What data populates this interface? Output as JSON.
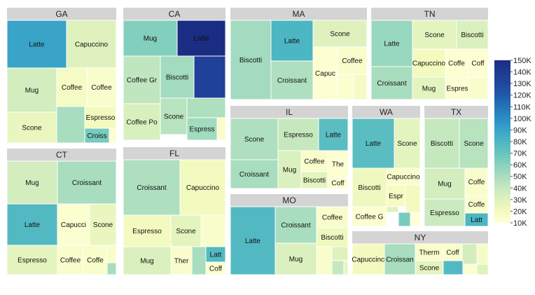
{
  "chart_data": {
    "type": "treemap",
    "title": "",
    "color_scale": {
      "min": 10000,
      "max": 150000,
      "stops": [
        {
          "value": 10000,
          "color": "#ffffd6"
        },
        {
          "value": 20000,
          "color": "#f3fabf"
        },
        {
          "value": 30000,
          "color": "#dff2be"
        },
        {
          "value": 40000,
          "color": "#c6e8bf"
        },
        {
          "value": 50000,
          "color": "#a8ddbf"
        },
        {
          "value": 60000,
          "color": "#88d2bd"
        },
        {
          "value": 70000,
          "color": "#68c4be"
        },
        {
          "value": 80000,
          "color": "#4cb6c3"
        },
        {
          "value": 90000,
          "color": "#39a3c8"
        },
        {
          "value": 100000,
          "color": "#2b8dc4"
        },
        {
          "value": 110000,
          "color": "#2574b8"
        },
        {
          "value": 120000,
          "color": "#2159aa"
        },
        {
          "value": 130000,
          "color": "#1f479d"
        },
        {
          "value": 140000,
          "color": "#1f3a92"
        },
        {
          "value": 150000,
          "color": "#1b2c83"
        }
      ],
      "ticks": [
        "150K",
        "140K",
        "130K",
        "120K",
        "110K",
        "100K",
        "90K",
        "80K",
        "70K",
        "60K",
        "50K",
        "40K",
        "30K",
        "20K",
        "10K"
      ]
    },
    "groups": [
      {
        "name": "GA",
        "cells": [
          {
            "label": "Latte",
            "value": 90000
          },
          {
            "label": "Capuccino",
            "value": 30000
          },
          {
            "label": "Mug",
            "value": 35000
          },
          {
            "label": "Coffee",
            "value": 18000
          },
          {
            "label": "Coffee",
            "value": 15000
          },
          {
            "label": "Scone",
            "value": 25000
          },
          {
            "label": "",
            "value": 50000
          },
          {
            "label": "Espresso",
            "value": 20000
          },
          {
            "label": "Croiss",
            "value": 65000
          },
          {
            "label": "",
            "value": 12000
          }
        ]
      },
      {
        "name": "CA",
        "cells": [
          {
            "label": "Mug",
            "value": 62000
          },
          {
            "label": "Latte",
            "value": 150000
          },
          {
            "label": "Coffee Gr",
            "value": 42000
          },
          {
            "label": "Biscotti",
            "value": 52000
          },
          {
            "label": "",
            "value": 135000
          },
          {
            "label": "Coffee Po",
            "value": 33000
          },
          {
            "label": "Scone",
            "value": 45000
          },
          {
            "label": "",
            "value": 48000
          },
          {
            "label": "Espress",
            "value": 52000
          },
          {
            "label": "",
            "value": 15000
          }
        ]
      },
      {
        "name": "MA",
        "cells": [
          {
            "label": "Biscotti",
            "value": 52000
          },
          {
            "label": "Latte",
            "value": 80000
          },
          {
            "label": "Scone",
            "value": 30000
          },
          {
            "label": "Croissant",
            "value": 48000
          },
          {
            "label": "Coffee",
            "value": 15000
          },
          {
            "label": "Capuc",
            "value": 12000
          },
          {
            "label": "",
            "value": 13000
          },
          {
            "label": "",
            "value": 18000
          },
          {
            "label": "",
            "value": 15000
          }
        ]
      },
      {
        "name": "TN",
        "cells": [
          {
            "label": "Latte",
            "value": 55000
          },
          {
            "label": "Scone",
            "value": 28000
          },
          {
            "label": "Biscotti",
            "value": 32000
          },
          {
            "label": "Capuccino",
            "value": 20000
          },
          {
            "label": "Coffe",
            "value": 12000
          },
          {
            "label": "Coff",
            "value": 12000
          },
          {
            "label": "Croissant",
            "value": 50000
          },
          {
            "label": "Mug",
            "value": 28000
          },
          {
            "label": "Espres",
            "value": 12000
          },
          {
            "label": "",
            "value": 15000
          }
        ]
      },
      {
        "name": "IL",
        "cells": [
          {
            "label": "Scone",
            "value": 48000
          },
          {
            "label": "Espresso",
            "value": 40000
          },
          {
            "label": "Latte",
            "value": 75000
          },
          {
            "label": "Croissant",
            "value": 50000
          },
          {
            "label": "Mug",
            "value": 32000
          },
          {
            "label": "Coffee",
            "value": 15000
          },
          {
            "label": "The",
            "value": 12000
          },
          {
            "label": "Biscotti",
            "value": 28000
          },
          {
            "label": "Coff",
            "value": 13000
          },
          {
            "label": "",
            "value": 10000
          },
          {
            "label": "",
            "value": 10000
          },
          {
            "label": "",
            "value": 10000
          }
        ]
      },
      {
        "name": "WA",
        "cells": [
          {
            "label": "Latte",
            "value": 75000
          },
          {
            "label": "Scone",
            "value": 28000
          },
          {
            "label": "Biscotti",
            "value": 22000
          },
          {
            "label": "Capuccino",
            "value": 15000
          },
          {
            "label": "Espr",
            "value": 18000
          },
          {
            "label": "",
            "value": 20000
          },
          {
            "label": "",
            "value": 30000
          },
          {
            "label": "Coffee G",
            "value": 12000
          },
          {
            "label": "",
            "value": 65000
          },
          {
            "label": "",
            "value": 10000
          }
        ]
      },
      {
        "name": "TX",
        "cells": [
          {
            "label": "Biscotti",
            "value": 40000
          },
          {
            "label": "Scone",
            "value": 45000
          },
          {
            "label": "Mug",
            "value": 35000
          },
          {
            "label": "Coffe",
            "value": 15000
          },
          {
            "label": "Coffe",
            "value": 15000
          },
          {
            "label": "Espresso",
            "value": 38000
          },
          {
            "label": "Latt",
            "value": 80000
          }
        ]
      },
      {
        "name": "CT",
        "cells": [
          {
            "label": "Mug",
            "value": 35000
          },
          {
            "label": "Croissant",
            "value": 50000
          },
          {
            "label": "Latte",
            "value": 78000
          },
          {
            "label": "Capucci",
            "value": 13000
          },
          {
            "label": "Scone",
            "value": 25000
          },
          {
            "label": "Espresso",
            "value": 28000
          },
          {
            "label": "Coffee",
            "value": 15000
          },
          {
            "label": "Coffe",
            "value": 15000
          },
          {
            "label": "",
            "value": 15000
          },
          {
            "label": "",
            "value": 50000
          }
        ]
      },
      {
        "name": "FL",
        "cells": [
          {
            "label": "Croissant",
            "value": 48000
          },
          {
            "label": "Capuccino",
            "value": 20000
          },
          {
            "label": "Espresso",
            "value": 20000
          },
          {
            "label": "Scone",
            "value": 28000
          },
          {
            "label": "",
            "value": 15000
          },
          {
            "label": "Mug",
            "value": 32000
          },
          {
            "label": "Ther",
            "value": 15000
          },
          {
            "label": "",
            "value": 50000
          },
          {
            "label": "Latt",
            "value": 78000
          },
          {
            "label": "Coff",
            "value": 12000
          }
        ]
      },
      {
        "name": "MO",
        "cells": [
          {
            "label": "Latte",
            "value": 78000
          },
          {
            "label": "Croissant",
            "value": 50000
          },
          {
            "label": "Coffee",
            "value": 15000
          },
          {
            "label": "Biscotti",
            "value": 22000
          },
          {
            "label": "Mug",
            "value": 32000
          },
          {
            "label": "",
            "value": 15000
          },
          {
            "label": "",
            "value": 30000
          },
          {
            "label": "",
            "value": 40000
          },
          {
            "label": "",
            "value": 25000
          }
        ]
      },
      {
        "name": "NY",
        "cells": [
          {
            "label": "Capuccino",
            "value": 20000
          },
          {
            "label": "Croissan",
            "value": 50000
          },
          {
            "label": "Therm",
            "value": 15000
          },
          {
            "label": "Coff",
            "value": 15000
          },
          {
            "label": "",
            "value": 35000
          },
          {
            "label": "",
            "value": 18000
          },
          {
            "label": "Scone",
            "value": 28000
          },
          {
            "label": "",
            "value": 78000
          },
          {
            "label": "",
            "value": 13000
          },
          {
            "label": "",
            "value": 30000
          }
        ]
      }
    ]
  }
}
